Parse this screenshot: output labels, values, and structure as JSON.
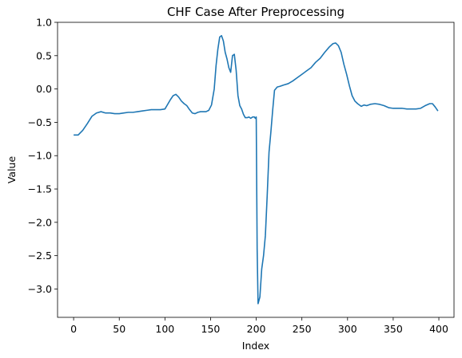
{
  "chart_data": {
    "type": "line",
    "title": "CHF Case After Preprocessing",
    "xlabel": "Index",
    "ylabel": "Value",
    "xlim": [
      -17.6,
      416.6
    ],
    "ylim": [
      -3.425,
      1.0
    ],
    "xticks": [
      0,
      50,
      100,
      150,
      200,
      250,
      300,
      350,
      400
    ],
    "yticks": [
      1.0,
      0.5,
      0.0,
      -0.5,
      -1.0,
      -1.5,
      -2.0,
      -2.5,
      -3.0
    ],
    "ytick_labels": [
      "1.0",
      "0.5",
      "0.0",
      "−0.5",
      "−1.0",
      "−1.5",
      "−2.0",
      "−2.5",
      "−3.0"
    ],
    "grid": false,
    "legend": "none",
    "series": [
      {
        "color": "#1f77b4",
        "x": [
          0,
          5,
          10,
          15,
          20,
          25,
          30,
          35,
          40,
          45,
          50,
          55,
          60,
          65,
          70,
          75,
          80,
          85,
          90,
          95,
          100,
          103,
          106,
          109,
          112,
          115,
          118,
          121,
          124,
          127,
          130,
          133,
          136,
          139,
          142,
          145,
          148,
          151,
          154,
          156,
          158,
          160,
          162,
          164,
          166,
          168,
          170,
          172,
          174,
          176,
          178,
          180,
          182,
          184,
          186,
          188,
          190,
          192,
          194,
          196,
          198,
          199,
          200,
          201,
          202,
          204,
          206,
          208,
          210,
          212,
          214,
          216,
          218,
          220,
          223,
          226,
          230,
          235,
          240,
          245,
          250,
          255,
          260,
          265,
          270,
          275,
          280,
          284,
          287,
          290,
          293,
          296,
          299,
          302,
          305,
          308,
          311,
          315,
          318,
          321,
          325,
          330,
          335,
          340,
          345,
          350,
          355,
          360,
          365,
          370,
          375,
          380,
          385,
          390,
          393,
          396,
          399
        ],
        "y": [
          -0.69,
          -0.69,
          -0.62,
          -0.52,
          -0.41,
          -0.36,
          -0.34,
          -0.36,
          -0.36,
          -0.37,
          -0.37,
          -0.36,
          -0.35,
          -0.35,
          -0.34,
          -0.33,
          -0.32,
          -0.31,
          -0.31,
          -0.31,
          -0.3,
          -0.23,
          -0.16,
          -0.1,
          -0.08,
          -0.12,
          -0.18,
          -0.22,
          -0.25,
          -0.31,
          -0.36,
          -0.37,
          -0.35,
          -0.34,
          -0.34,
          -0.34,
          -0.32,
          -0.24,
          0.0,
          0.35,
          0.6,
          0.78,
          0.8,
          0.72,
          0.55,
          0.45,
          0.32,
          0.25,
          0.5,
          0.52,
          0.28,
          -0.1,
          -0.25,
          -0.3,
          -0.38,
          -0.43,
          -0.43,
          -0.42,
          -0.44,
          -0.42,
          -0.42,
          -0.44,
          -0.42,
          -2.4,
          -3.22,
          -3.12,
          -2.7,
          -2.5,
          -2.2,
          -1.6,
          -0.95,
          -0.65,
          -0.32,
          -0.02,
          0.03,
          0.04,
          0.06,
          0.08,
          0.12,
          0.17,
          0.22,
          0.27,
          0.32,
          0.4,
          0.46,
          0.55,
          0.63,
          0.68,
          0.69,
          0.65,
          0.55,
          0.37,
          0.22,
          0.05,
          -0.1,
          -0.18,
          -0.22,
          -0.26,
          -0.24,
          -0.25,
          -0.23,
          -0.22,
          -0.23,
          -0.25,
          -0.28,
          -0.29,
          -0.29,
          -0.29,
          -0.3,
          -0.3,
          -0.3,
          -0.29,
          -0.25,
          -0.22,
          -0.22,
          -0.27,
          -0.33
        ]
      }
    ]
  }
}
